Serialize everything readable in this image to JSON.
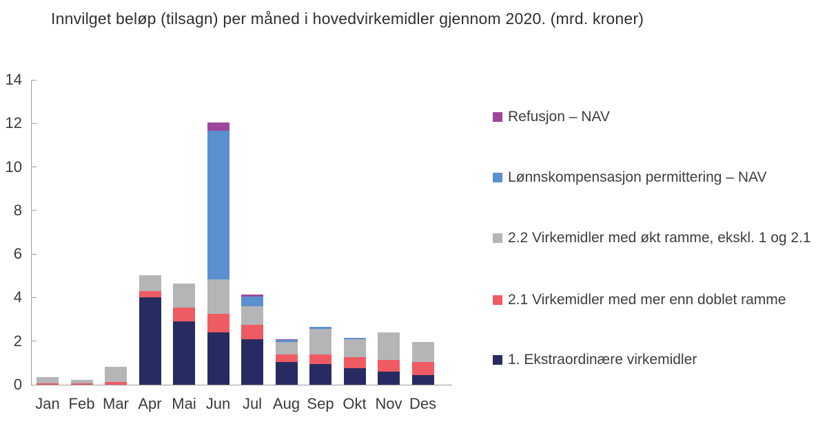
{
  "title": "Innvilget beløp (tilsagn) per måned i hovedvirkemidler gjennom 2020. (mrd. kroner)",
  "chart_data": {
    "type": "bar",
    "stacked": true,
    "title": "Innvilget beløp (tilsagn) per måned i hovedvirkemidler gjennom 2020. (mrd. kroner)",
    "xlabel": "",
    "ylabel": "",
    "categories": [
      "Jan",
      "Feb",
      "Mar",
      "Apr",
      "Mai",
      "Jun",
      "Jul",
      "Aug",
      "Sep",
      "Okt",
      "Nov",
      "Des"
    ],
    "series": [
      {
        "name": "1. Ekstraordinære virkemidler",
        "color": "#282b62",
        "values": [
          0,
          0,
          0,
          4.0,
          2.9,
          2.4,
          2.1,
          1.05,
          0.95,
          0.75,
          0.6,
          0.45
        ]
      },
      {
        "name": "2.1 Virkemidler med mer enn doblet ramme",
        "color": "#ef5b62",
        "values": [
          0.07,
          0.05,
          0.12,
          0.3,
          0.65,
          0.85,
          0.65,
          0.35,
          0.45,
          0.5,
          0.55,
          0.6
        ]
      },
      {
        "name": "2.2 Virkemidler med økt ramme, ekskl. 1 og 2.1",
        "color": "#b4b5b7",
        "values": [
          0.28,
          0.18,
          0.7,
          0.72,
          1.1,
          1.6,
          0.85,
          0.55,
          1.15,
          0.82,
          1.25,
          0.92
        ]
      },
      {
        "name": "Lønnskompensasjon permittering – NAV",
        "color": "#5b90d0",
        "values": [
          0,
          0,
          0,
          0,
          0,
          6.8,
          0.45,
          0.1,
          0.1,
          0.07,
          0,
          0
        ]
      },
      {
        "name": "Refusjon – NAV",
        "color": "#9c469c",
        "values": [
          0,
          0,
          0,
          0,
          0,
          0.4,
          0.1,
          0.02,
          0,
          0,
          0,
          0
        ]
      }
    ],
    "totals": [
      0.35,
      0.23,
      0.82,
      5.02,
      4.65,
      12.05,
      4.15,
      2.07,
      2.65,
      2.14,
      2.4,
      1.97
    ],
    "ylim": [
      0,
      14
    ],
    "yticks": [
      0,
      2,
      4,
      6,
      8,
      10,
      12,
      14
    ],
    "grid": false,
    "legend_position": "right",
    "legend_order": [
      4,
      3,
      2,
      1,
      0
    ]
  }
}
